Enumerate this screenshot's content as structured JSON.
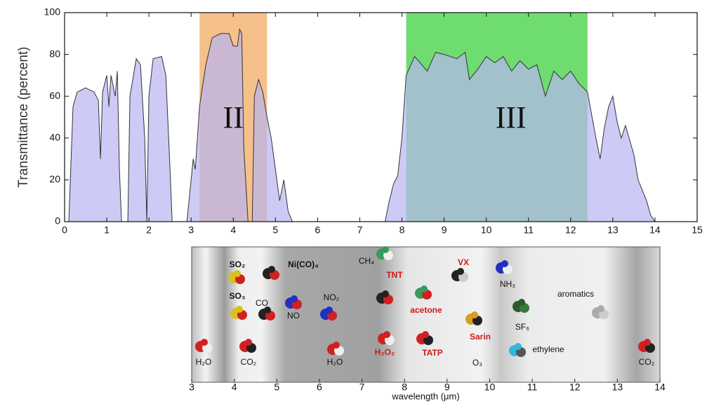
{
  "chart_data": [
    {
      "type": "area",
      "ylabel": "Transmittance (percent)",
      "x": [
        0.1,
        0.2,
        0.3,
        0.5,
        0.7,
        0.8,
        0.85,
        0.9,
        1.0,
        1.05,
        1.1,
        1.2,
        1.25,
        1.3,
        1.35,
        1.5,
        1.55,
        1.7,
        1.8,
        1.9,
        1.95,
        2.0,
        2.1,
        2.3,
        2.4,
        2.5,
        2.55,
        2.9,
        3.0,
        3.05,
        3.1,
        3.2,
        3.25,
        3.35,
        3.5,
        3.7,
        3.9,
        4.0,
        4.1,
        4.15,
        4.2,
        4.25,
        4.35,
        4.45,
        4.5,
        4.6,
        4.7,
        4.8,
        4.9,
        5.0,
        5.1,
        5.2,
        5.3,
        5.4,
        7.6,
        7.7,
        7.8,
        7.9,
        8.0,
        8.1,
        8.3,
        8.6,
        8.8,
        9.0,
        9.3,
        9.5,
        9.6,
        9.8,
        10.0,
        10.2,
        10.4,
        10.6,
        10.8,
        11.0,
        11.2,
        11.4,
        11.6,
        11.8,
        12.0,
        12.2,
        12.4,
        12.6,
        12.7,
        12.8,
        12.9,
        13.0,
        13.1,
        13.2,
        13.3,
        13.5,
        13.6,
        13.8,
        13.9,
        14.0
      ],
      "values": [
        0,
        55,
        62,
        64,
        62,
        58,
        30,
        62,
        70,
        55,
        70,
        60,
        72,
        25,
        0,
        0,
        60,
        78,
        75,
        40,
        0,
        60,
        78,
        79,
        70,
        25,
        0,
        0,
        20,
        30,
        25,
        55,
        62,
        75,
        88,
        90,
        90,
        84,
        84,
        92,
        90,
        35,
        0,
        0,
        60,
        68,
        62,
        50,
        40,
        25,
        10,
        20,
        5,
        0,
        0,
        10,
        18,
        22,
        40,
        70,
        79,
        72,
        81,
        80,
        78,
        81,
        68,
        73,
        79,
        76,
        79,
        72,
        77,
        73,
        75,
        60,
        72,
        68,
        72,
        66,
        62,
        40,
        30,
        45,
        55,
        60,
        48,
        40,
        46,
        32,
        20,
        10,
        3,
        0
      ],
      "color": "#b8b5f2",
      "xlim": [
        0,
        15
      ],
      "xticks": [
        0,
        1,
        2,
        3,
        4,
        5,
        6,
        7,
        8,
        9,
        10,
        11,
        12,
        13,
        14,
        15
      ],
      "ylim": [
        0,
        100
      ],
      "yticks": [
        0,
        20,
        40,
        60,
        80,
        100
      ],
      "bands": [
        {
          "label": "II",
          "range": [
            3.2,
            4.8
          ],
          "color": "#f5c08a"
        },
        {
          "label": "III",
          "range": [
            8.1,
            12.4
          ],
          "color": "#6fdc6f"
        }
      ]
    },
    {
      "type": "strip",
      "xlabel": "wavelength (μm)",
      "xlim": [
        3,
        14
      ],
      "xticks": [
        3,
        4,
        5,
        6,
        7,
        8,
        9,
        10,
        11,
        12,
        13,
        14
      ],
      "molecules": [
        {
          "name": "SO₂",
          "color": "#111"
        },
        {
          "name": "SO₃",
          "color": "#111"
        },
        {
          "name": "Ni(CO)₄",
          "color": "#111"
        },
        {
          "name": "CO",
          "color": "#111"
        },
        {
          "name": "NO",
          "color": "#111"
        },
        {
          "name": "NO₂",
          "color": "#111"
        },
        {
          "name": "H₂O",
          "color": "#111"
        },
        {
          "name": "CO₂",
          "color": "#111"
        },
        {
          "name": "H₂O",
          "color": "#111"
        },
        {
          "name": "CH₄",
          "color": "#111"
        },
        {
          "name": "TNT",
          "color": "#d01818"
        },
        {
          "name": "VX",
          "color": "#d01818"
        },
        {
          "name": "NH₃",
          "color": "#111"
        },
        {
          "name": "acetone",
          "color": "#d01818"
        },
        {
          "name": "H₂O₂",
          "color": "#d01818"
        },
        {
          "name": "TATP",
          "color": "#d01818"
        },
        {
          "name": "Sarin",
          "color": "#d01818"
        },
        {
          "name": "O₃",
          "color": "#111"
        },
        {
          "name": "SF₆",
          "color": "#111"
        },
        {
          "name": "ethylene",
          "color": "#111"
        },
        {
          "name": "aromatics",
          "color": "#111"
        },
        {
          "name": "CO₂",
          "color": "#111"
        }
      ]
    }
  ]
}
